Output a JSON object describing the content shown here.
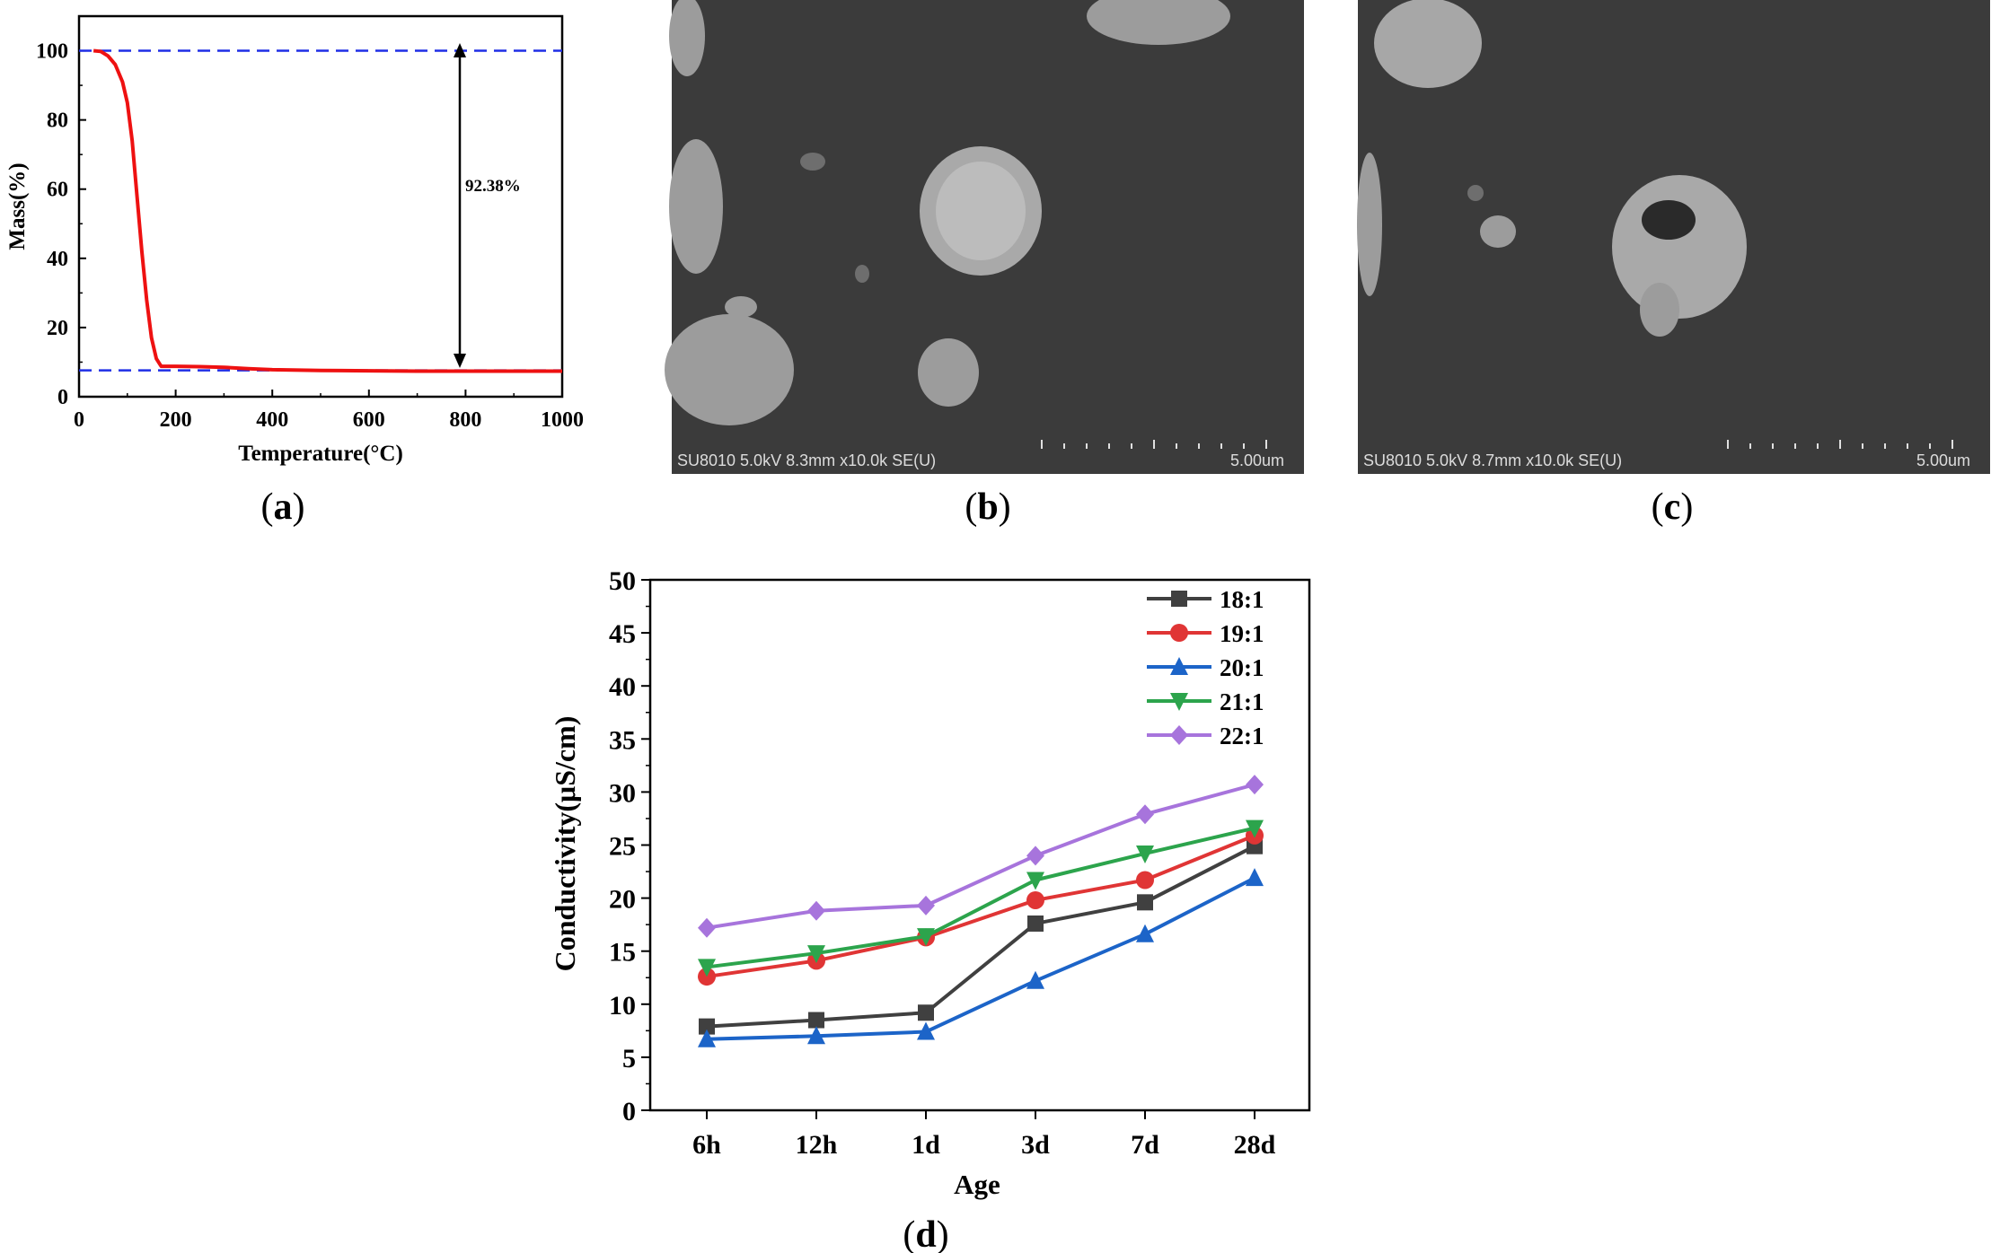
{
  "panel_labels": {
    "a": "a",
    "b": "b",
    "c": "c",
    "d": "d"
  },
  "sem_b": {
    "caption": "SU8010 5.0kV 8.3mm x10.0k SE(U)",
    "scale": "5.00um"
  },
  "sem_c": {
    "caption": "SU8010 5.0kV 8.7mm x10.0k SE(U)",
    "scale": "5.00um"
  },
  "colors": {
    "tga_curve": "#ee1111",
    "dashed": "#1f2ee6",
    "annotation": "#1a1aff",
    "s18": "#404040",
    "s19": "#e03535",
    "s20": "#1c64c8",
    "s21": "#2ca44c",
    "s22": "#a774dc"
  },
  "chart_data": [
    {
      "id": "a",
      "type": "line",
      "title": "",
      "xlabel": "Temperature(°C)",
      "ylabel": "Mass(%)",
      "xlim": [
        0,
        1000
      ],
      "ylim": [
        0,
        110
      ],
      "xticks": [
        0,
        200,
        400,
        600,
        800,
        1000
      ],
      "yticks": [
        0,
        20,
        40,
        60,
        80,
        100
      ],
      "grid": false,
      "series": [
        {
          "x": [
            30,
            45,
            60,
            75,
            90,
            100,
            110,
            120,
            130,
            140,
            150,
            160,
            170,
            200,
            250,
            300,
            350,
            400,
            500,
            600,
            700,
            800,
            900,
            1000
          ],
          "y": [
            100,
            99.8,
            98.5,
            96,
            91,
            85,
            74,
            58,
            42,
            28,
            17,
            11,
            8.8,
            8.8,
            8.7,
            8.5,
            8.1,
            7.8,
            7.6,
            7.5,
            7.4,
            7.4,
            7.4,
            7.4
          ]
        }
      ],
      "reference_lines": {
        "upper": 100,
        "lower": 7.62
      },
      "annotation": "92.38%"
    },
    {
      "id": "d",
      "type": "line",
      "title": "",
      "xlabel": "Age",
      "ylabel": "Conductivity(μS/cm)",
      "categories": [
        "6h",
        "12h",
        "1d",
        "3d",
        "7d",
        "28d"
      ],
      "ylim": [
        0,
        50
      ],
      "yticks": [
        0,
        5,
        10,
        15,
        20,
        25,
        30,
        35,
        40,
        45,
        50
      ],
      "grid": false,
      "legend_position": "top-right",
      "series": [
        {
          "name": "18:1",
          "marker": "square",
          "values": [
            7.9,
            8.5,
            9.2,
            17.6,
            19.6,
            24.9
          ]
        },
        {
          "name": "19:1",
          "marker": "circle",
          "values": [
            12.6,
            14.1,
            16.3,
            19.8,
            21.7,
            25.9
          ]
        },
        {
          "name": "20:1",
          "marker": "triangle-up",
          "values": [
            6.7,
            7.0,
            7.4,
            12.2,
            16.6,
            21.9
          ]
        },
        {
          "name": "21:1",
          "marker": "triangle-down",
          "values": [
            13.5,
            14.8,
            16.4,
            21.7,
            24.2,
            26.6
          ]
        },
        {
          "name": "22:1",
          "marker": "diamond",
          "values": [
            17.2,
            18.8,
            19.3,
            24.0,
            27.9,
            30.7
          ]
        }
      ]
    }
  ]
}
